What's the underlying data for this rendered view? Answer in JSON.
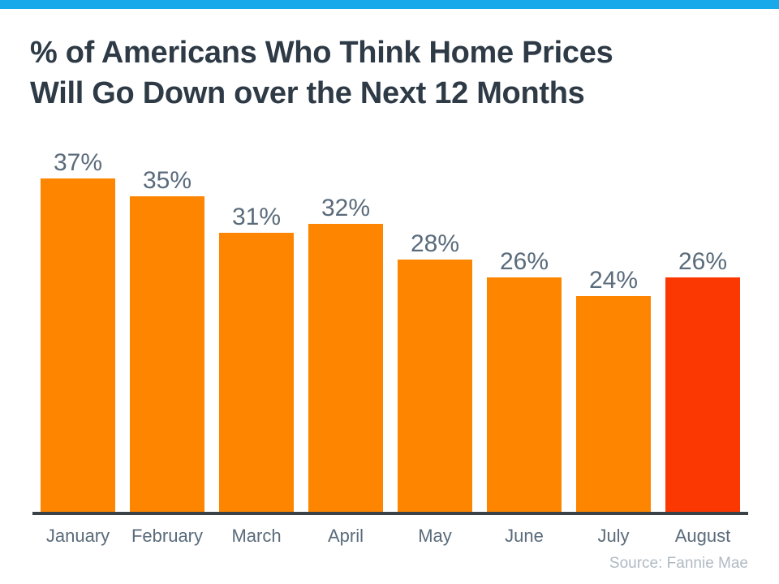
{
  "colors": {
    "background": "#FFFFFF",
    "top_bar": "#18A9EB",
    "title_text": "#2E3B46",
    "label_text": "#5A6B7B",
    "axis_line": "#3A4147",
    "bar_default": "#FD8500",
    "bar_highlight": "#FC3802",
    "source_text": "#B0BAC3"
  },
  "header": {
    "title_line1": "% of Americans Who Think Home Prices",
    "title_line2": "Will Go Down over the Next 12 Months"
  },
  "chart_data": {
    "type": "bar",
    "title": "% of Americans Who Think Home Prices Will Go Down over the Next 12 Months",
    "categories": [
      "January",
      "February",
      "March",
      "April",
      "May",
      "June",
      "July",
      "August"
    ],
    "values": [
      37,
      35,
      31,
      32,
      28,
      26,
      24,
      26
    ],
    "value_labels": [
      "37%",
      "35%",
      "31%",
      "32%",
      "28%",
      "26%",
      "24%",
      "26%"
    ],
    "highlight_index": 7,
    "xlabel": "",
    "ylabel": "",
    "ylim": [
      0,
      40
    ],
    "grid": false,
    "legend": null
  },
  "footer": {
    "source": "Source: Fannie Mae"
  }
}
